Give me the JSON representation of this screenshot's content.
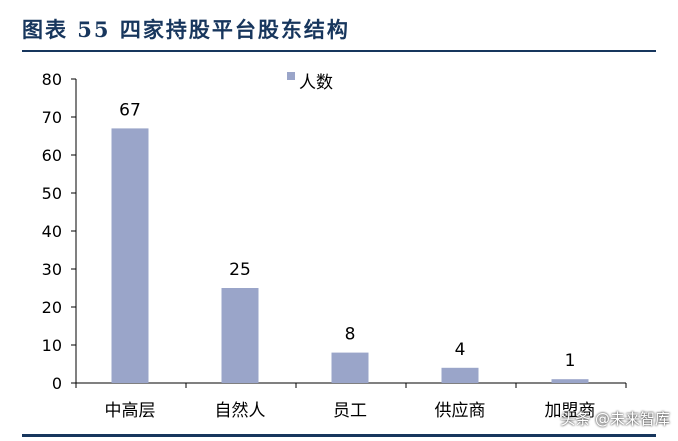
{
  "header": {
    "title": "图表 55 四家持股平台股东结构"
  },
  "watermark": "头条 @未来智库",
  "chart_data": {
    "type": "bar",
    "categories": [
      "中高层",
      "自然人",
      "员工",
      "供应商",
      "加盟商"
    ],
    "series": [
      {
        "name": "人数",
        "values": [
          67,
          25,
          8,
          4,
          1
        ],
        "color": "#9aa5c9"
      }
    ],
    "ylim": [
      0,
      80
    ],
    "yticks": [
      0,
      10,
      20,
      30,
      40,
      50,
      60,
      70,
      80
    ],
    "data_labels": true,
    "grid": false,
    "legend_position": "top"
  }
}
